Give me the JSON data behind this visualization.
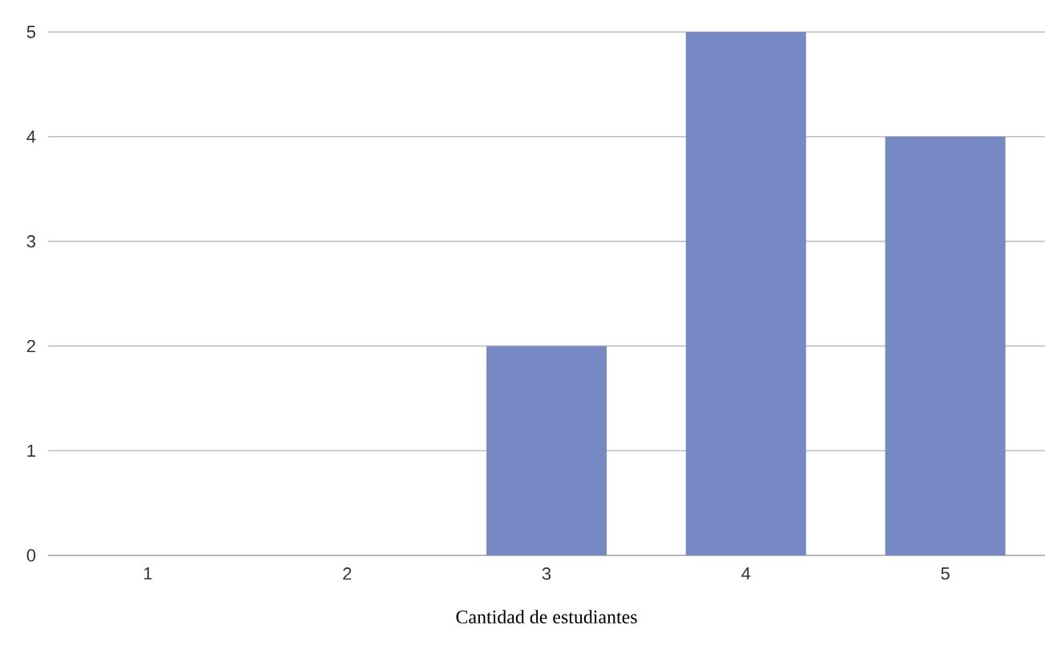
{
  "chart_data": {
    "type": "bar",
    "xlabel": "Cantidad de estudiantes",
    "categories": [
      "1",
      "2",
      "3",
      "4",
      "5"
    ],
    "values": [
      0,
      0,
      2,
      5,
      4
    ],
    "color": "#7789c4",
    "ylim": [
      0,
      5
    ],
    "yticks": [
      0,
      1,
      2,
      3,
      4,
      5
    ],
    "grid": "y"
  }
}
